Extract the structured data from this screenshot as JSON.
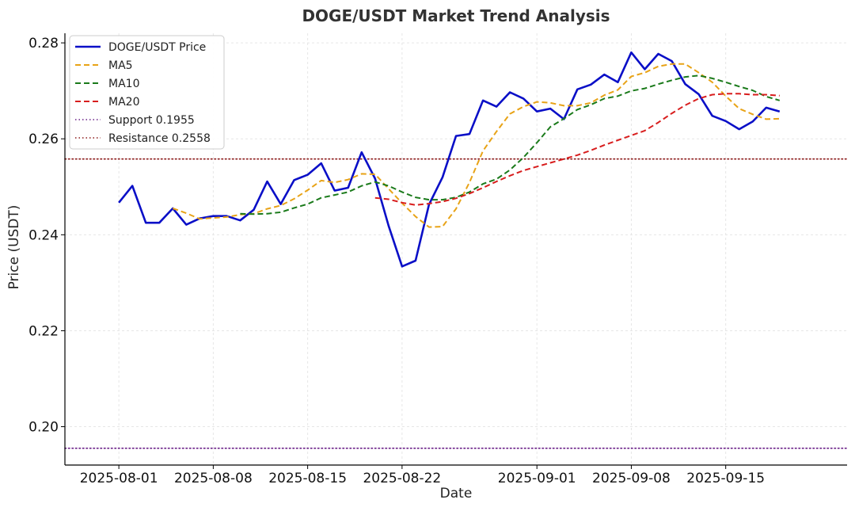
{
  "chart_data": {
    "type": "line",
    "title": "DOGE/USDT Market Trend Analysis",
    "xlabel": "Date",
    "ylabel": "Price (USDT)",
    "x_start": "2025-08-01",
    "x_end": "2025-09-20",
    "xlim": [
      "2025-07-28",
      "2025-09-24"
    ],
    "ylim": [
      0.192,
      0.282
    ],
    "x_ticks": [
      {
        "date": "2025-08-01",
        "label": "2025-08-01"
      },
      {
        "date": "2025-08-08",
        "label": "2025-08-08"
      },
      {
        "date": "2025-08-15",
        "label": "2025-08-15"
      },
      {
        "date": "2025-08-22",
        "label": "2025-08-22"
      },
      {
        "date": "2025-09-01",
        "label": "2025-09-01"
      },
      {
        "date": "2025-09-08",
        "label": "2025-09-08"
      },
      {
        "date": "2025-09-15",
        "label": "2025-09-15"
      }
    ],
    "y_ticks": [
      {
        "value": 0.2,
        "label": "0.20"
      },
      {
        "value": 0.22,
        "label": "0.22"
      },
      {
        "value": 0.24,
        "label": "0.24"
      },
      {
        "value": 0.26,
        "label": "0.26"
      },
      {
        "value": 0.28,
        "label": "0.28"
      }
    ],
    "grid": true,
    "legend_position": "top-left",
    "series": [
      {
        "name": "DOGE/USDT Price",
        "color": "#0a0fc7",
        "dash": "solid",
        "values": [
          0.2467,
          0.2502,
          0.2425,
          0.2425,
          0.2455,
          0.2421,
          0.2434,
          0.2439,
          0.2439,
          0.243,
          0.2452,
          0.2511,
          0.2464,
          0.2514,
          0.2525,
          0.2549,
          0.2492,
          0.2498,
          0.2572,
          0.2517,
          0.2419,
          0.2334,
          0.2346,
          0.2463,
          0.252,
          0.2606,
          0.261,
          0.268,
          0.2667,
          0.2697,
          0.2684,
          0.2657,
          0.2663,
          0.2641,
          0.2703,
          0.2713,
          0.2734,
          0.2718,
          0.278,
          0.2745,
          0.2777,
          0.2762,
          0.2714,
          0.2693,
          0.2648,
          0.2637,
          0.262,
          0.2636,
          0.2665,
          0.2657
        ]
      },
      {
        "name": "MA5",
        "color": "#e8a317",
        "dash": "dashed",
        "values": [
          null,
          null,
          null,
          null,
          0.2455,
          0.2445,
          0.2433,
          0.2435,
          0.2437,
          0.2442,
          0.2444,
          0.2454,
          0.2461,
          0.2475,
          0.2493,
          0.2513,
          0.2509,
          0.2515,
          0.2527,
          0.2526,
          0.2496,
          0.2466,
          0.2438,
          0.2416,
          0.2417,
          0.2454,
          0.2509,
          0.2575,
          0.2615,
          0.2652,
          0.2667,
          0.2677,
          0.2675,
          0.2669,
          0.2669,
          0.2675,
          0.2691,
          0.2702,
          0.273,
          0.2738,
          0.2751,
          0.2756,
          0.2756,
          0.2738,
          0.2718,
          0.2689,
          0.2663,
          0.2651,
          0.2641,
          0.2642
        ]
      },
      {
        "name": "MA10",
        "color": "#1a7a1a",
        "dash": "dashed",
        "values": [
          null,
          null,
          null,
          null,
          null,
          null,
          null,
          null,
          null,
          0.2444,
          0.2443,
          0.2444,
          0.2447,
          0.2456,
          0.2464,
          0.2477,
          0.2483,
          0.2489,
          0.2502,
          0.251,
          0.2502,
          0.2489,
          0.2478,
          0.2473,
          0.2473,
          0.2478,
          0.2489,
          0.2506,
          0.2516,
          0.2535,
          0.2561,
          0.2592,
          0.2625,
          0.2642,
          0.2661,
          0.2671,
          0.2684,
          0.2689,
          0.27,
          0.2705,
          0.2714,
          0.2722,
          0.2729,
          0.2732,
          0.2726,
          0.2718,
          0.2709,
          0.2701,
          0.2688,
          0.268
        ]
      },
      {
        "name": "MA20",
        "color": "#d81e1e",
        "dash": "dashed",
        "values": [
          null,
          null,
          null,
          null,
          null,
          null,
          null,
          null,
          null,
          null,
          null,
          null,
          null,
          null,
          null,
          null,
          null,
          null,
          null,
          0.2477,
          0.2474,
          0.2467,
          0.2462,
          0.2465,
          0.2469,
          0.2476,
          0.2486,
          0.2498,
          0.2511,
          0.2523,
          0.2534,
          0.2542,
          0.255,
          0.2558,
          0.2566,
          0.2576,
          0.2587,
          0.2597,
          0.2607,
          0.2617,
          0.2634,
          0.2653,
          0.267,
          0.2684,
          0.2692,
          0.2694,
          0.2694,
          0.2692,
          0.2692,
          0.269
        ]
      },
      {
        "name": "Support 0.1955",
        "color": "#6a2088",
        "dash": "dotted",
        "hline": 0.1955
      },
      {
        "name": "Resistance 0.2558",
        "color": "#8b1a1a",
        "dash": "dotted",
        "hline": 0.2558
      }
    ]
  }
}
